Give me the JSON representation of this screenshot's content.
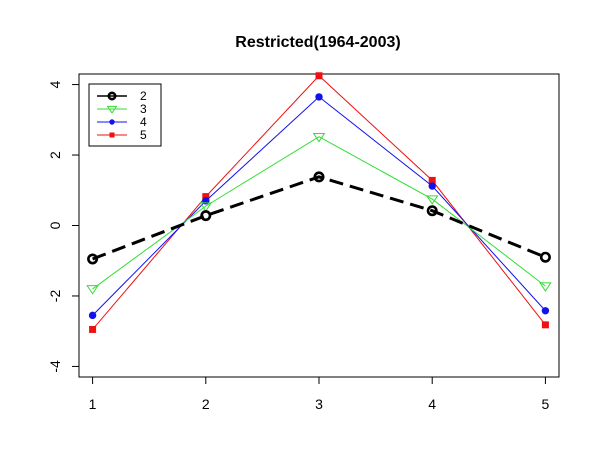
{
  "chart_data": {
    "type": "line",
    "title": "Restricted(1964-2003)",
    "xlabel": "",
    "ylabel": "",
    "x": [
      1,
      2,
      3,
      4,
      5
    ],
    "x_ticks": [
      "1",
      "2",
      "3",
      "4",
      "5"
    ],
    "y_ticks": [
      "-4",
      "-2",
      "0",
      "2",
      "4"
    ],
    "xlim": [
      0.88,
      5.12
    ],
    "ylim": [
      -4.3,
      4.3
    ],
    "grid": false,
    "legend_position": "top-left",
    "series": [
      {
        "name": "2",
        "values": [
          -0.95,
          0.28,
          1.38,
          0.42,
          -0.9
        ],
        "color": "#000000",
        "line": "dashed-thick",
        "marker": "open-circle"
      },
      {
        "name": "3",
        "values": [
          -1.8,
          0.55,
          2.52,
          0.75,
          -1.72
        ],
        "color": "#33dd33",
        "line": "solid",
        "marker": "open-triangle-down"
      },
      {
        "name": "4",
        "values": [
          -2.55,
          0.7,
          3.65,
          1.12,
          -2.42
        ],
        "color": "#1111ee",
        "line": "solid",
        "marker": "filled-circle"
      },
      {
        "name": "5",
        "values": [
          -2.95,
          0.82,
          4.25,
          1.28,
          -2.82
        ],
        "color": "#ee1111",
        "line": "solid",
        "marker": "filled-square"
      }
    ]
  }
}
